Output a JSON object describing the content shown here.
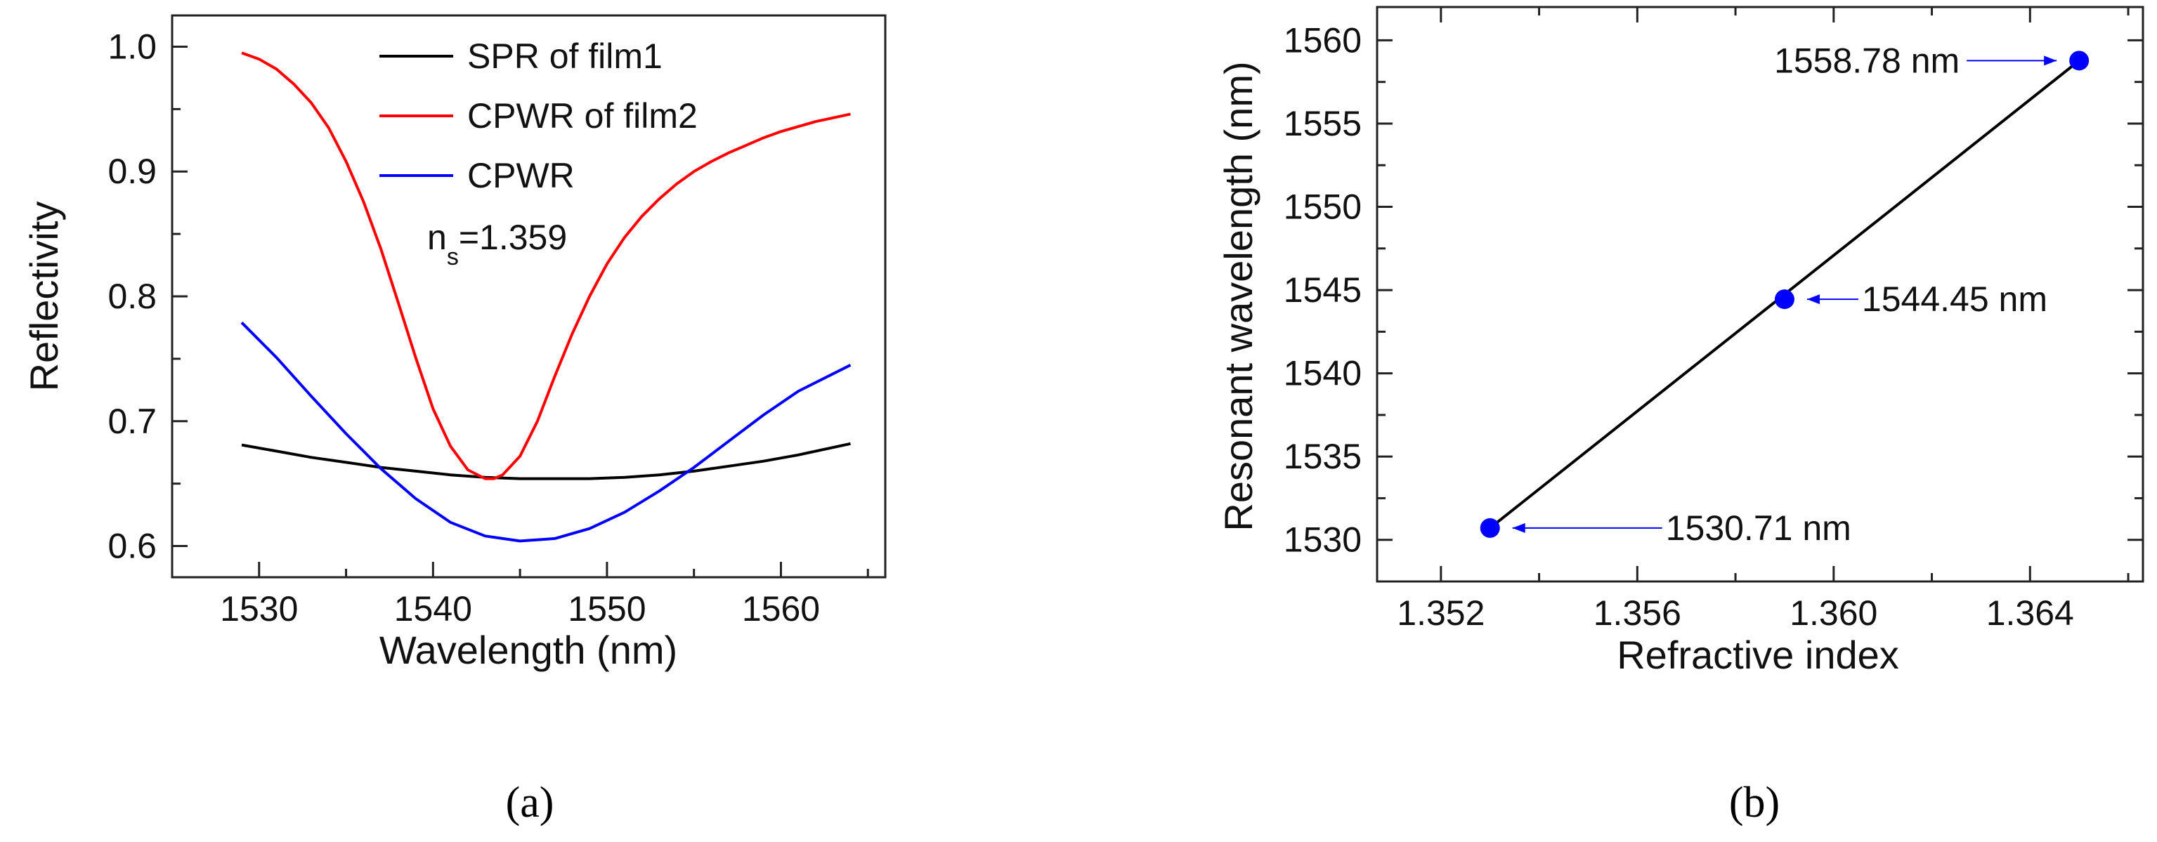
{
  "chart_data": [
    {
      "type": "line",
      "panel": "a",
      "xlabel": "Wavelength (nm)",
      "ylabel": "Reflectivity",
      "xlim": [
        1525,
        1566
      ],
      "ylim": [
        0.575,
        1.025
      ],
      "xticks": [
        1530,
        1540,
        1550,
        1560
      ],
      "xtick_labels": [
        "1530",
        "1540",
        "1550",
        "1560"
      ],
      "yticks": [
        0.6,
        0.7,
        0.8,
        0.9,
        1.0
      ],
      "ytick_labels": [
        "0.6",
        "0.7",
        "0.8",
        "0.9",
        "1.0"
      ],
      "annotation": {
        "base": "n",
        "sub": "s",
        "rest": "=1.359"
      },
      "legend_position": "top-right",
      "series": [
        {
          "name": "SPR of film1",
          "color": "#000000",
          "x": [
            1529,
            1531,
            1533,
            1535,
            1537,
            1539,
            1541,
            1543,
            1545,
            1547,
            1549,
            1551,
            1553,
            1555,
            1557,
            1559,
            1561,
            1564
          ],
          "y": [
            0.681,
            0.676,
            0.671,
            0.667,
            0.663,
            0.66,
            0.657,
            0.655,
            0.654,
            0.654,
            0.654,
            0.655,
            0.657,
            0.66,
            0.664,
            0.668,
            0.673,
            0.682
          ]
        },
        {
          "name": "CPWR of film2",
          "color": "#ff0000",
          "x": [
            1529,
            1530,
            1531,
            1532,
            1533,
            1534,
            1535,
            1536,
            1537,
            1538,
            1539,
            1540,
            1541,
            1542,
            1543,
            1543.5,
            1544,
            1545,
            1546,
            1547,
            1548,
            1549,
            1550,
            1551,
            1552,
            1553,
            1554,
            1555,
            1556,
            1557,
            1558,
            1559,
            1560,
            1561,
            1562,
            1563,
            1564
          ],
          "y": [
            0.995,
            0.99,
            0.982,
            0.97,
            0.955,
            0.935,
            0.908,
            0.876,
            0.838,
            0.795,
            0.751,
            0.71,
            0.68,
            0.661,
            0.654,
            0.654,
            0.657,
            0.672,
            0.7,
            0.736,
            0.77,
            0.8,
            0.826,
            0.847,
            0.864,
            0.878,
            0.89,
            0.9,
            0.908,
            0.915,
            0.921,
            0.927,
            0.932,
            0.936,
            0.94,
            0.943,
            0.946
          ]
        },
        {
          "name": "CPWR",
          "color": "#0000ff",
          "x": [
            1529,
            1531,
            1533,
            1535,
            1537,
            1539,
            1541,
            1543,
            1545,
            1547,
            1549,
            1551,
            1553,
            1555,
            1557,
            1559,
            1561,
            1564
          ],
          "y": [
            0.779,
            0.751,
            0.72,
            0.69,
            0.662,
            0.638,
            0.619,
            0.608,
            0.604,
            0.606,
            0.614,
            0.627,
            0.644,
            0.663,
            0.684,
            0.705,
            0.724,
            0.745
          ]
        }
      ]
    },
    {
      "type": "scatter",
      "panel": "b",
      "xlabel": "Refractive index",
      "ylabel": "Resonant wavelength (nm)",
      "xlim": [
        1.3507,
        1.3663
      ],
      "ylim": [
        1527.5,
        1562
      ],
      "xticks": [
        1.352,
        1.356,
        1.36,
        1.364
      ],
      "xtick_labels": [
        "1.352",
        "1.356",
        "1.360",
        "1.364"
      ],
      "yticks": [
        1530,
        1535,
        1540,
        1545,
        1550,
        1555,
        1560
      ],
      "ytick_labels": [
        "1530",
        "1535",
        "1540",
        "1545",
        "1550",
        "1555",
        "1560"
      ],
      "fit_line_color": "#000000",
      "point_color": "#0000ff",
      "points": [
        {
          "x": 1.353,
          "y": 1530.71,
          "label": "1530.71 nm"
        },
        {
          "x": 1.359,
          "y": 1544.45,
          "label": "1544.45 nm"
        },
        {
          "x": 1.365,
          "y": 1558.78,
          "label": "1558.78 nm"
        }
      ]
    }
  ],
  "captions": {
    "a": "(a)",
    "b": "(b)"
  }
}
